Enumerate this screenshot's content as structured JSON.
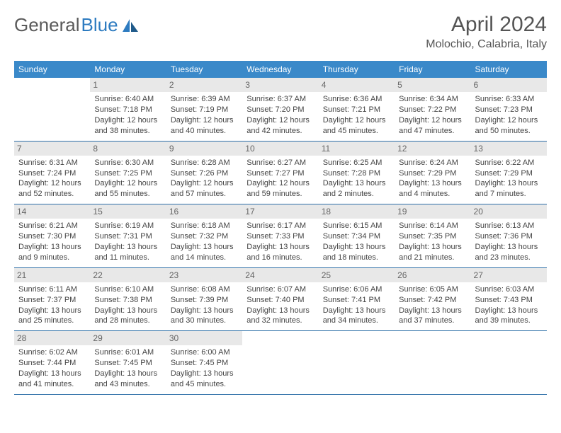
{
  "brand": {
    "name1": "General",
    "name2": "Blue"
  },
  "title": "April 2024",
  "location": "Molochio, Calabria, Italy",
  "colors": {
    "header_bg": "#3a89c9",
    "header_text": "#ffffff",
    "daynum_bg": "#e8e8e8",
    "daynum_text": "#666666",
    "border": "#2d6fa8",
    "body_text": "#444444",
    "title_text": "#555555",
    "background": "#ffffff"
  },
  "typography": {
    "title_fontsize": 30,
    "location_fontsize": 16,
    "dayheader_fontsize": 12,
    "daynum_fontsize": 12,
    "cell_fontsize": 11
  },
  "day_labels": [
    "Sunday",
    "Monday",
    "Tuesday",
    "Wednesday",
    "Thursday",
    "Friday",
    "Saturday"
  ],
  "weeks": [
    [
      {
        "n": "",
        "sr": "",
        "ss": "",
        "dl": ""
      },
      {
        "n": "1",
        "sr": "Sunrise: 6:40 AM",
        "ss": "Sunset: 7:18 PM",
        "dl": "Daylight: 12 hours and 38 minutes."
      },
      {
        "n": "2",
        "sr": "Sunrise: 6:39 AM",
        "ss": "Sunset: 7:19 PM",
        "dl": "Daylight: 12 hours and 40 minutes."
      },
      {
        "n": "3",
        "sr": "Sunrise: 6:37 AM",
        "ss": "Sunset: 7:20 PM",
        "dl": "Daylight: 12 hours and 42 minutes."
      },
      {
        "n": "4",
        "sr": "Sunrise: 6:36 AM",
        "ss": "Sunset: 7:21 PM",
        "dl": "Daylight: 12 hours and 45 minutes."
      },
      {
        "n": "5",
        "sr": "Sunrise: 6:34 AM",
        "ss": "Sunset: 7:22 PM",
        "dl": "Daylight: 12 hours and 47 minutes."
      },
      {
        "n": "6",
        "sr": "Sunrise: 6:33 AM",
        "ss": "Sunset: 7:23 PM",
        "dl": "Daylight: 12 hours and 50 minutes."
      }
    ],
    [
      {
        "n": "7",
        "sr": "Sunrise: 6:31 AM",
        "ss": "Sunset: 7:24 PM",
        "dl": "Daylight: 12 hours and 52 minutes."
      },
      {
        "n": "8",
        "sr": "Sunrise: 6:30 AM",
        "ss": "Sunset: 7:25 PM",
        "dl": "Daylight: 12 hours and 55 minutes."
      },
      {
        "n": "9",
        "sr": "Sunrise: 6:28 AM",
        "ss": "Sunset: 7:26 PM",
        "dl": "Daylight: 12 hours and 57 minutes."
      },
      {
        "n": "10",
        "sr": "Sunrise: 6:27 AM",
        "ss": "Sunset: 7:27 PM",
        "dl": "Daylight: 12 hours and 59 minutes."
      },
      {
        "n": "11",
        "sr": "Sunrise: 6:25 AM",
        "ss": "Sunset: 7:28 PM",
        "dl": "Daylight: 13 hours and 2 minutes."
      },
      {
        "n": "12",
        "sr": "Sunrise: 6:24 AM",
        "ss": "Sunset: 7:29 PM",
        "dl": "Daylight: 13 hours and 4 minutes."
      },
      {
        "n": "13",
        "sr": "Sunrise: 6:22 AM",
        "ss": "Sunset: 7:29 PM",
        "dl": "Daylight: 13 hours and 7 minutes."
      }
    ],
    [
      {
        "n": "14",
        "sr": "Sunrise: 6:21 AM",
        "ss": "Sunset: 7:30 PM",
        "dl": "Daylight: 13 hours and 9 minutes."
      },
      {
        "n": "15",
        "sr": "Sunrise: 6:19 AM",
        "ss": "Sunset: 7:31 PM",
        "dl": "Daylight: 13 hours and 11 minutes."
      },
      {
        "n": "16",
        "sr": "Sunrise: 6:18 AM",
        "ss": "Sunset: 7:32 PM",
        "dl": "Daylight: 13 hours and 14 minutes."
      },
      {
        "n": "17",
        "sr": "Sunrise: 6:17 AM",
        "ss": "Sunset: 7:33 PM",
        "dl": "Daylight: 13 hours and 16 minutes."
      },
      {
        "n": "18",
        "sr": "Sunrise: 6:15 AM",
        "ss": "Sunset: 7:34 PM",
        "dl": "Daylight: 13 hours and 18 minutes."
      },
      {
        "n": "19",
        "sr": "Sunrise: 6:14 AM",
        "ss": "Sunset: 7:35 PM",
        "dl": "Daylight: 13 hours and 21 minutes."
      },
      {
        "n": "20",
        "sr": "Sunrise: 6:13 AM",
        "ss": "Sunset: 7:36 PM",
        "dl": "Daylight: 13 hours and 23 minutes."
      }
    ],
    [
      {
        "n": "21",
        "sr": "Sunrise: 6:11 AM",
        "ss": "Sunset: 7:37 PM",
        "dl": "Daylight: 13 hours and 25 minutes."
      },
      {
        "n": "22",
        "sr": "Sunrise: 6:10 AM",
        "ss": "Sunset: 7:38 PM",
        "dl": "Daylight: 13 hours and 28 minutes."
      },
      {
        "n": "23",
        "sr": "Sunrise: 6:08 AM",
        "ss": "Sunset: 7:39 PM",
        "dl": "Daylight: 13 hours and 30 minutes."
      },
      {
        "n": "24",
        "sr": "Sunrise: 6:07 AM",
        "ss": "Sunset: 7:40 PM",
        "dl": "Daylight: 13 hours and 32 minutes."
      },
      {
        "n": "25",
        "sr": "Sunrise: 6:06 AM",
        "ss": "Sunset: 7:41 PM",
        "dl": "Daylight: 13 hours and 34 minutes."
      },
      {
        "n": "26",
        "sr": "Sunrise: 6:05 AM",
        "ss": "Sunset: 7:42 PM",
        "dl": "Daylight: 13 hours and 37 minutes."
      },
      {
        "n": "27",
        "sr": "Sunrise: 6:03 AM",
        "ss": "Sunset: 7:43 PM",
        "dl": "Daylight: 13 hours and 39 minutes."
      }
    ],
    [
      {
        "n": "28",
        "sr": "Sunrise: 6:02 AM",
        "ss": "Sunset: 7:44 PM",
        "dl": "Daylight: 13 hours and 41 minutes."
      },
      {
        "n": "29",
        "sr": "Sunrise: 6:01 AM",
        "ss": "Sunset: 7:45 PM",
        "dl": "Daylight: 13 hours and 43 minutes."
      },
      {
        "n": "30",
        "sr": "Sunrise: 6:00 AM",
        "ss": "Sunset: 7:45 PM",
        "dl": "Daylight: 13 hours and 45 minutes."
      },
      {
        "n": "",
        "sr": "",
        "ss": "",
        "dl": ""
      },
      {
        "n": "",
        "sr": "",
        "ss": "",
        "dl": ""
      },
      {
        "n": "",
        "sr": "",
        "ss": "",
        "dl": ""
      },
      {
        "n": "",
        "sr": "",
        "ss": "",
        "dl": ""
      }
    ]
  ]
}
